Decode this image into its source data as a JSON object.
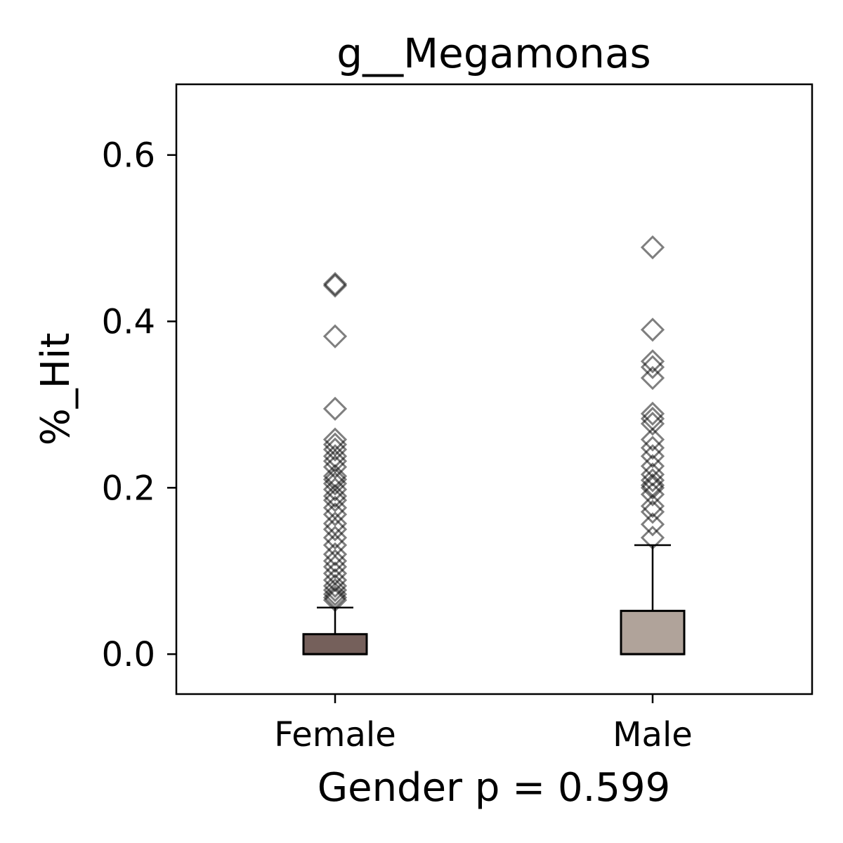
{
  "chart_data": {
    "type": "box",
    "title": "g__Megamonas",
    "xlabel": "Gender p = 0.599",
    "ylabel": "%_Hit",
    "categories": [
      "Female",
      "Male"
    ],
    "ylim": [
      -0.048,
      0.685
    ],
    "yticks": [
      0.0,
      0.2,
      0.4,
      0.6
    ],
    "ytick_labels": [
      "0.0",
      "0.2",
      "0.4",
      "0.6"
    ],
    "grid": false,
    "series": [
      {
        "category": "Female",
        "color": "#75605b",
        "q1": 0.0,
        "median": 0.0,
        "q3": 0.024,
        "whisker_low": 0.0,
        "whisker_high": 0.056,
        "outliers": [
          0.445,
          0.443,
          0.382,
          0.295,
          0.258,
          0.252,
          0.246,
          0.238,
          0.232,
          0.225,
          0.214,
          0.21,
          0.205,
          0.198,
          0.19,
          0.185,
          0.176,
          0.168,
          0.157,
          0.15,
          0.14,
          0.131,
          0.12,
          0.112,
          0.105,
          0.097,
          0.089,
          0.082,
          0.077,
          0.072,
          0.068,
          0.065
        ]
      },
      {
        "category": "Male",
        "color": "#b0a39a",
        "q1": 0.0,
        "median": 0.0,
        "q3": 0.052,
        "whisker_low": 0.0,
        "whisker_high": 0.131,
        "outliers": [
          0.489,
          0.39,
          0.352,
          0.345,
          0.332,
          0.289,
          0.283,
          0.277,
          0.258,
          0.248,
          0.238,
          0.226,
          0.216,
          0.209,
          0.203,
          0.2,
          0.192,
          0.178,
          0.171,
          0.156,
          0.14
        ]
      }
    ]
  }
}
